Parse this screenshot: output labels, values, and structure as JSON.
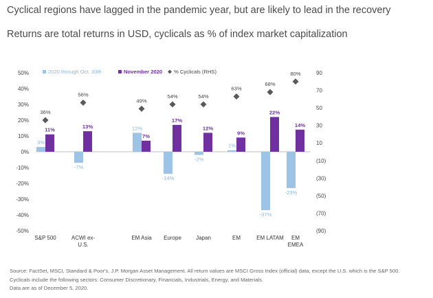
{
  "title": "Cyclical regions have lagged in the pandemic year, but are likely to lead in the recovery",
  "subtitle": "Returns are total returns in USD, cyclicals as % of index market capitalization",
  "footnotes": [
    "Source: FactSet, MSCI, Standard & Poor's, J.P. Morgan Asset Management. All return values are MSCI Gross Index (official) data, except the U.S. which is the S&P 500.",
    "Cyclicals include the following sectors: Consumer Discretionary, Financials, Industrials, Energy, and Materials.",
    "Data are as of December 5, 2020."
  ],
  "chart_data": {
    "type": "bar",
    "categories": [
      [
        "S&P 500"
      ],
      [
        "ACWI ex-",
        "U.S."
      ],
      [
        "EM Asia"
      ],
      [
        "Europe"
      ],
      [
        "Japan"
      ],
      [
        "EM"
      ],
      [
        "EM LATAM"
      ],
      [
        "EM",
        "EMEA"
      ]
    ],
    "series": [
      {
        "name": "2020 through Oct. 30th",
        "color": "#9dc3e6",
        "values": [
          3,
          -7,
          12,
          -14,
          -2,
          1,
          -37,
          -23
        ],
        "labels": [
          "3%",
          "-7%",
          "12%",
          "-14%",
          "-2%",
          "1%",
          "-37%",
          "-23%"
        ]
      },
      {
        "name": "November 2020",
        "color": "#7030a0",
        "values": [
          11,
          13,
          7,
          17,
          12,
          9,
          22,
          14
        ],
        "labels": [
          "11%",
          "13%",
          "7%",
          "17%",
          "12%",
          "9%",
          "22%",
          "14%"
        ]
      }
    ],
    "cyclicals": {
      "name": "% Cyclicals (RHS)",
      "color": "#595959",
      "values": [
        36,
        56,
        49,
        54,
        54,
        63,
        68,
        80
      ],
      "labels": [
        "36%",
        "56%",
        "49%",
        "54%",
        "54%",
        "63%",
        "68%",
        "80%"
      ]
    },
    "ylim": [
      -50,
      50
    ],
    "y_ticks": [
      50,
      40,
      30,
      20,
      10,
      0,
      -10,
      -20,
      -30,
      -40,
      -50
    ],
    "y_tick_labels": [
      "50%",
      "40%",
      "30%",
      "20%",
      "10%",
      "0%",
      "-10%",
      "-20%",
      "-30%",
      "-40%",
      "-50%"
    ],
    "y2lim": [
      -90,
      90
    ],
    "y2_ticks": [
      90,
      70,
      50,
      30,
      10,
      -10,
      -30,
      -50,
      -70,
      -90
    ],
    "y2_tick_labels": [
      "90",
      "70",
      "50",
      "30",
      "10",
      "(10)",
      "(30)",
      "(50)",
      "(70)",
      "(90)"
    ],
    "legend": "top-left"
  }
}
